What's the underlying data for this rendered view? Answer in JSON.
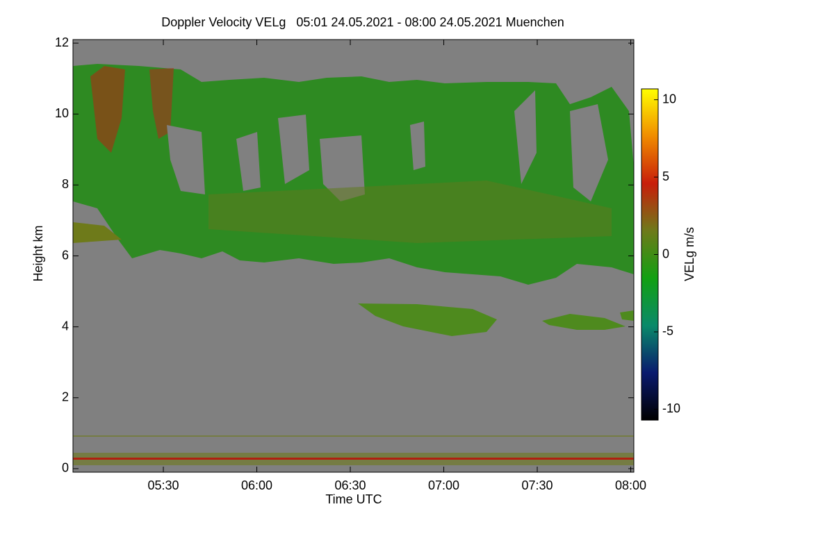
{
  "chart_data": {
    "type": "heatmap",
    "title": "Doppler Velocity VELg   05:01 24.05.2021 - 08:00 24.05.2021 Muenchen",
    "x_label": "Time UTC",
    "y_label": "Height km",
    "xlim": [
      301,
      481
    ],
    "xticks": [
      {
        "value": 330,
        "label": "05:30"
      },
      {
        "value": 360,
        "label": "06:00"
      },
      {
        "value": 390,
        "label": "06:30"
      },
      {
        "value": 420,
        "label": "07:00"
      },
      {
        "value": 450,
        "label": "07:30"
      },
      {
        "value": 480,
        "label": "08:00"
      }
    ],
    "ylim": [
      -0.1,
      12.1
    ],
    "yticks": [
      0,
      2,
      4,
      6,
      8,
      10,
      12
    ],
    "colorbar": {
      "label": "VELg m/s",
      "clim": [
        -10.7,
        10.7
      ],
      "ticks": [
        -10,
        -5,
        0,
        5,
        10
      ],
      "colors": [
        "#000000",
        "#0a1a6e",
        "#0a8a6a",
        "#12a012",
        "#6e7a1a",
        "#c81e0a",
        "#f08c00",
        "#ffff00"
      ]
    },
    "background": "#808080"
  }
}
